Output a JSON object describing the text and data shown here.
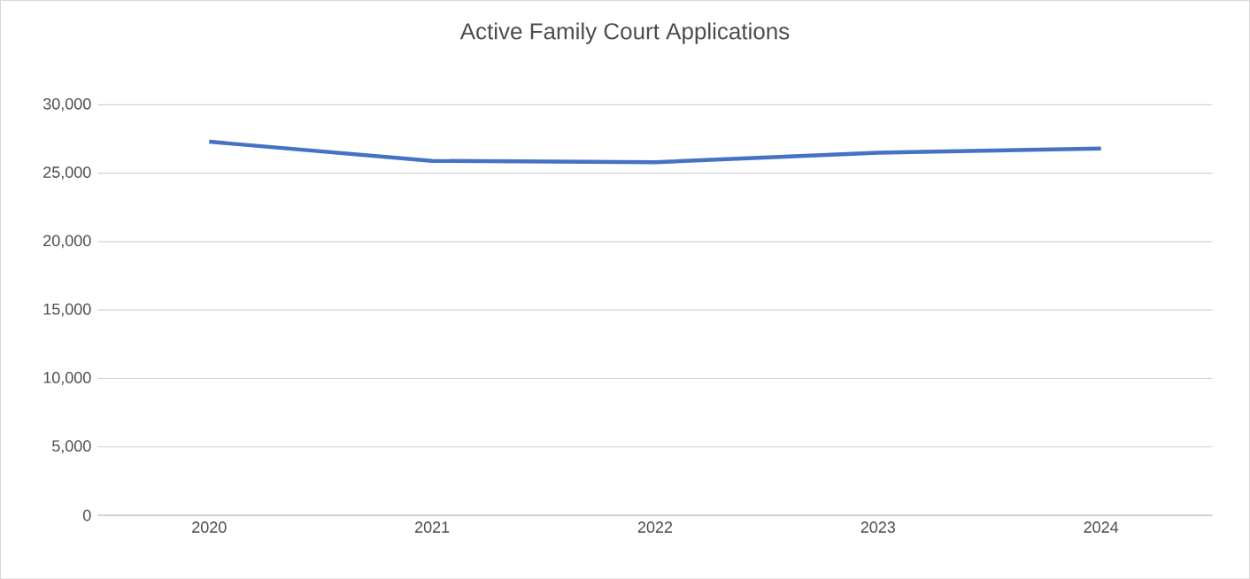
{
  "chart_data": {
    "type": "line",
    "title": "Active Family Court Applications",
    "categories": [
      "2020",
      "2021",
      "2022",
      "2023",
      "2024"
    ],
    "series": [
      {
        "color": "#4472c4",
        "values": [
          27300,
          25900,
          25800,
          26500,
          26800
        ]
      }
    ],
    "ylim": [
      0,
      30000
    ],
    "yticks": [
      {
        "value": 0,
        "label": "0"
      },
      {
        "value": 5000,
        "label": "5,000"
      },
      {
        "value": 10000,
        "label": "10,000"
      },
      {
        "value": 15000,
        "label": "15,000"
      },
      {
        "value": 20000,
        "label": "20,000"
      },
      {
        "value": 25000,
        "label": "25,000"
      },
      {
        "value": 30000,
        "label": "30,000"
      }
    ],
    "grid": "y",
    "marker": "none",
    "line_style": "solid"
  }
}
